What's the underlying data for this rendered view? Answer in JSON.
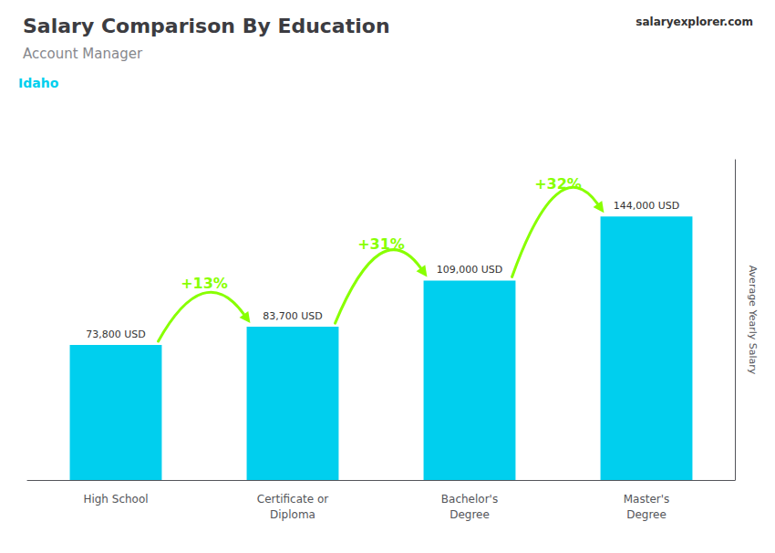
{
  "chart_data": {
    "type": "bar",
    "title": "Salary Comparison By Education",
    "subtitle": "Account Manager",
    "ylabel": "Average Yearly Salary",
    "categories": [
      "High School",
      "Certificate or\nDiploma",
      "Bachelor's\nDegree",
      "Master's\nDegree"
    ],
    "values": [
      73800,
      83700,
      109000,
      144000
    ],
    "value_labels": [
      "73,800 USD",
      "83,700 USD",
      "109,000 USD",
      "144,000 USD"
    ],
    "data_labels": true,
    "color": "#00CFEE",
    "ylim": [
      0,
      175000
    ],
    "tick_labels": "x",
    "grid": false,
    "annotations": [
      {
        "text": "Idaho",
        "color": "#00CFEE"
      },
      {
        "text": "salaryexplorer.com"
      },
      {
        "text": "+13%",
        "from": "High School",
        "to": "Certificate or\nDiploma",
        "color": "#88FF00"
      },
      {
        "text": "+31%",
        "from": "Certificate or\nDiploma",
        "to": "Bachelor's\nDegree",
        "color": "#88FF00"
      },
      {
        "text": "+32%",
        "from": "Bachelor's\nDegree",
        "to": "Master's\nDegree",
        "color": "#88FF00"
      }
    ]
  }
}
